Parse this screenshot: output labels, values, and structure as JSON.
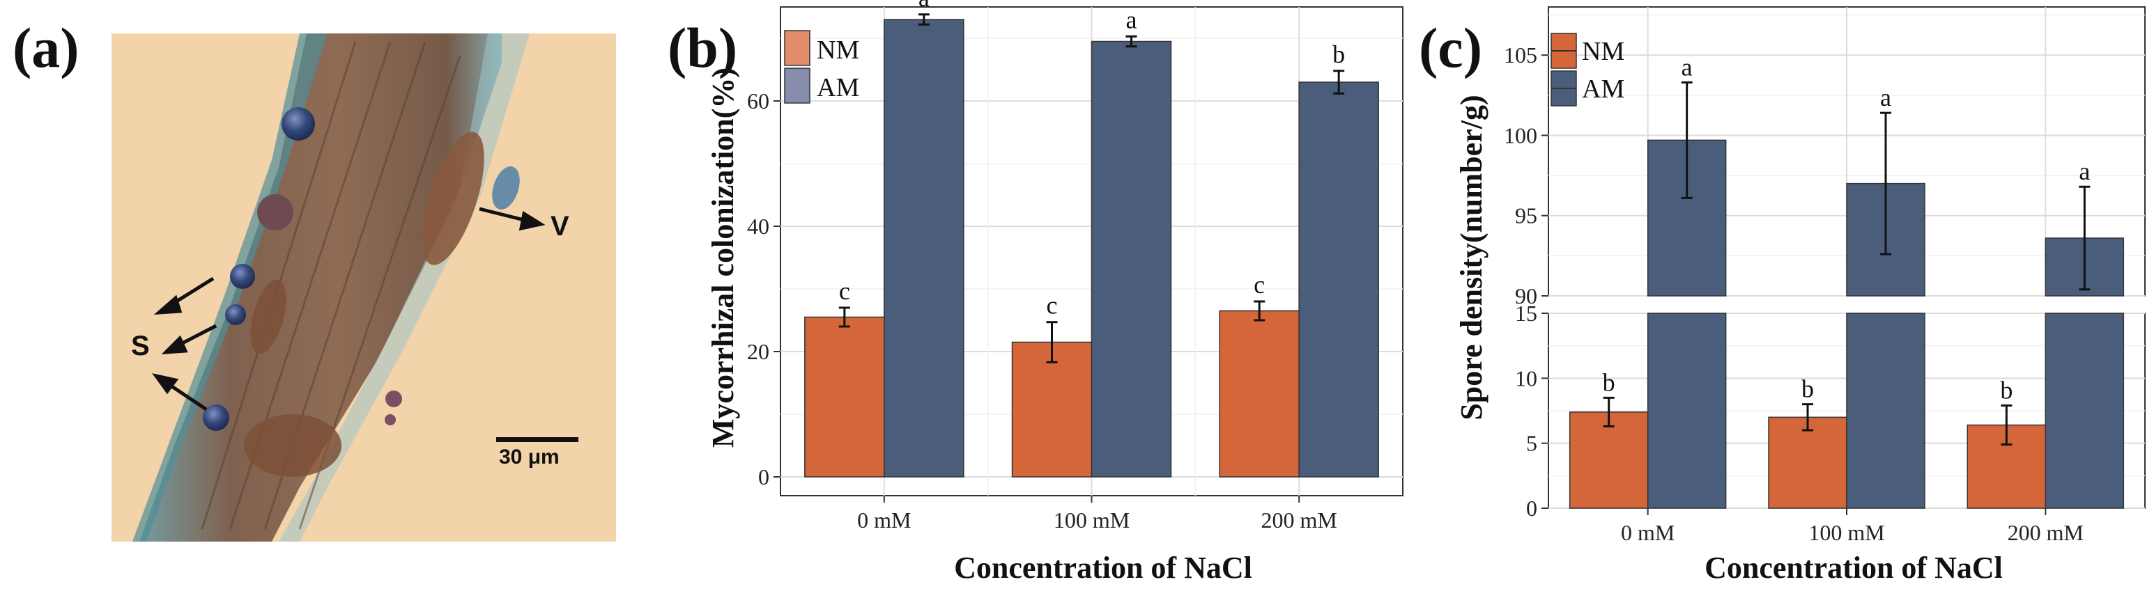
{
  "panels": {
    "a": "(a)",
    "b": "(b)",
    "c": "(c)"
  },
  "micrograph": {
    "labels": {
      "spore": "S",
      "vesicle": "V"
    },
    "scale_bar": "30 μm",
    "colors": {
      "background": "#f3d3aa",
      "root": "#7a5a48",
      "stain": "#3e6d7e",
      "spore": "#34487a"
    }
  },
  "colors": {
    "NM": "#d5663a",
    "AM": "#4a5e7c"
  },
  "chart_data": [
    {
      "type": "bar",
      "panel": "b",
      "title": "",
      "xlabel": "Concentration of NaCl",
      "ylabel": "Mycorrhizal colonization(%)",
      "categories": [
        "0 mM",
        "100 mM",
        "200 mM"
      ],
      "ylim": [
        -3,
        75
      ],
      "yticks": [
        "0",
        "20",
        "40",
        "60"
      ],
      "legend_position": "top-left",
      "series": [
        {
          "name": "NM",
          "values": [
            25.5,
            21.5,
            26.5
          ],
          "errors": [
            1.5,
            3.2,
            1.5
          ],
          "letters": [
            "c",
            "c",
            "c"
          ]
        },
        {
          "name": "AM",
          "values": [
            73.0,
            69.5,
            63.0
          ],
          "errors": [
            0.8,
            0.8,
            1.8
          ],
          "letters": [
            "a",
            "a",
            "b"
          ]
        }
      ]
    },
    {
      "type": "bar",
      "panel": "c",
      "title": "",
      "xlabel": "Concentration of NaCl",
      "ylabel": "Spore density(number/g)",
      "categories": [
        "0 mM",
        "100 mM",
        "200 mM"
      ],
      "axis_break": {
        "lower_ylim": [
          0,
          15
        ],
        "upper_ylim": [
          90,
          108
        ]
      },
      "yticks_lower": [
        "0",
        "5",
        "10",
        "15"
      ],
      "yticks_upper": [
        "90",
        "95",
        "100",
        "105"
      ],
      "legend_position": "top-left",
      "series": [
        {
          "name": "NM",
          "values": [
            7.4,
            7.0,
            6.4
          ],
          "errors": [
            1.1,
            1.0,
            1.5
          ],
          "letters": [
            "b",
            "b",
            "b"
          ]
        },
        {
          "name": "AM",
          "values": [
            99.7,
            97.0,
            93.6
          ],
          "errors": [
            3.6,
            4.4,
            3.2
          ],
          "letters": [
            "a",
            "a",
            "a"
          ]
        }
      ]
    }
  ]
}
